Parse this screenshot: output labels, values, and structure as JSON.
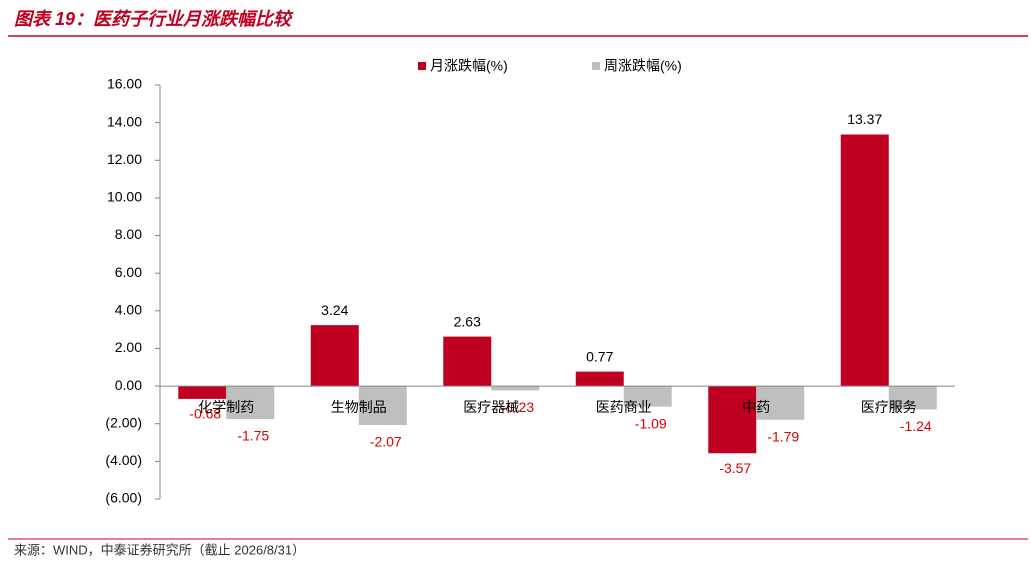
{
  "chart_data": {
    "type": "bar",
    "title": "图表 19：医药子行业月涨跌幅比较",
    "source": "来源：WIND，中泰证券研究所（截止 2026/8/31）",
    "categories": [
      "化学制药",
      "生物制品",
      "医疗器械",
      "医药商业",
      "中药",
      "医疗服务"
    ],
    "series": [
      {
        "name": "月涨跌幅(%)",
        "color": "#c00020",
        "values": [
          -0.68,
          3.24,
          2.63,
          0.77,
          -3.57,
          13.37
        ]
      },
      {
        "name": "周涨跌幅(%)",
        "color": "#bfbfbf",
        "values": [
          -1.75,
          -2.07,
          -0.23,
          -1.09,
          -1.79,
          -1.24
        ]
      }
    ],
    "ylim": [
      -6,
      16
    ],
    "yticks": [
      {
        "value": -6,
        "label": "(6.00)"
      },
      {
        "value": -4,
        "label": "(4.00)"
      },
      {
        "value": -2,
        "label": "(2.00)"
      },
      {
        "value": 0,
        "label": "0.00"
      },
      {
        "value": 2,
        "label": "2.00"
      },
      {
        "value": 4,
        "label": "4.00"
      },
      {
        "value": 6,
        "label": "6.00"
      },
      {
        "value": 8,
        "label": "8.00"
      },
      {
        "value": 10,
        "label": "10.00"
      },
      {
        "value": 12,
        "label": "12.00"
      },
      {
        "value": 14,
        "label": "14.00"
      },
      {
        "value": 16,
        "label": "16.00"
      }
    ],
    "grid": false
  }
}
